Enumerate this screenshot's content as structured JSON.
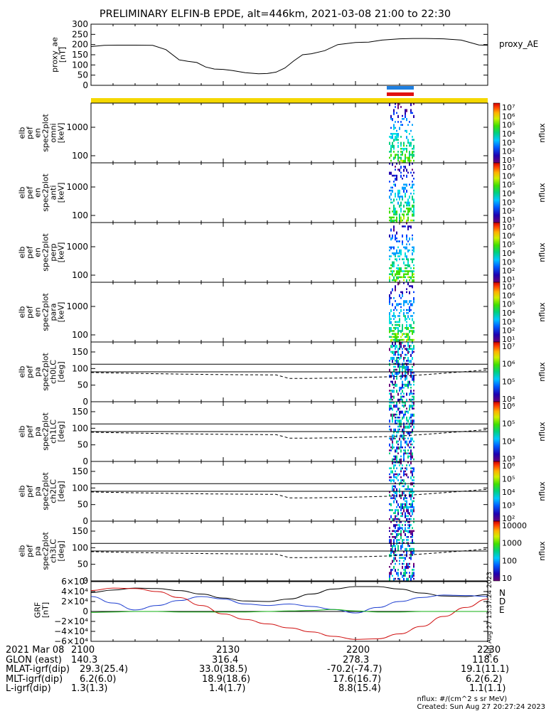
{
  "title": "PRELIMINARY ELFIN-B EPDE, alt=446km, 2021-03-08 21:00 to 22:30",
  "colors": {
    "ae_line": "#000000",
    "bar_yellow": "#f5d800",
    "bar_blue": "#1e7fe0",
    "bar_red": "#e01010",
    "grf_n": "#1f3fd0",
    "grf_d": "#d01010",
    "grf_e": "#10b010"
  },
  "chart_data": [
    {
      "type": "line",
      "panel": "proxy_ae",
      "ylabel_lines": [
        "proxy_ae",
        "[nT]"
      ],
      "legend": "proxy_AE",
      "ylim": [
        0,
        300
      ],
      "yticks": [
        "300",
        "250",
        "200",
        "150",
        "100",
        "50",
        "0"
      ],
      "x_minutes": [
        0,
        3,
        6,
        10,
        14,
        17,
        20,
        22,
        24,
        26,
        28,
        30,
        32,
        35,
        38,
        40,
        42,
        44,
        46,
        48,
        50,
        53,
        56,
        58,
        60,
        63,
        66,
        70,
        73,
        76,
        80,
        84,
        88,
        90
      ],
      "values": [
        190,
        196,
        197,
        197,
        196,
        175,
        125,
        118,
        112,
        90,
        80,
        78,
        73,
        62,
        57,
        58,
        65,
        85,
        120,
        150,
        155,
        170,
        200,
        205,
        210,
        212,
        222,
        228,
        230,
        230,
        228,
        222,
        198,
        196
      ]
    },
    {
      "type": "heatmap",
      "panel": "omni",
      "ylabel_lines": [
        "elb",
        "pef",
        "en",
        "spec2plot",
        "omni",
        "[keV]"
      ],
      "yticks": [
        "1000",
        "100"
      ],
      "colorbar_label": "nflux",
      "colorbar_ticks": [
        "10⁷",
        "10⁶",
        "10⁵",
        "10⁴",
        "10³",
        "10²",
        "10¹"
      ]
    },
    {
      "type": "heatmap",
      "panel": "anti",
      "ylabel_lines": [
        "elb",
        "pef",
        "en",
        "spec2plot",
        "anti",
        "[keV]"
      ],
      "yticks": [
        "1000",
        "100"
      ],
      "colorbar_label": "nflux",
      "colorbar_ticks": [
        "10⁷",
        "10⁶",
        "10⁵",
        "10⁴",
        "10³",
        "10²",
        "10¹"
      ]
    },
    {
      "type": "heatmap",
      "panel": "perp",
      "ylabel_lines": [
        "elb",
        "pef",
        "en",
        "spec2plot",
        "perp",
        "[keV]"
      ],
      "yticks": [
        "1000",
        "100"
      ],
      "colorbar_label": "nflux",
      "colorbar_ticks": [
        "10⁷",
        "10⁶",
        "10⁵",
        "10⁴",
        "10³",
        "10²",
        "10¹"
      ]
    },
    {
      "type": "heatmap",
      "panel": "para",
      "ylabel_lines": [
        "elb",
        "pef",
        "en",
        "spec2plot",
        "para",
        "[keV]"
      ],
      "yticks": [
        "1000",
        "100"
      ],
      "colorbar_label": "nflux",
      "colorbar_ticks": [
        "10⁷",
        "10⁶",
        "10⁵",
        "10⁴",
        "10³",
        "10²",
        "10¹"
      ]
    },
    {
      "type": "heatmap",
      "panel": "ch0LC",
      "ylabel_lines": [
        "elb",
        "pef",
        "pa",
        "spec2plot",
        "ch0LC",
        "[deg]"
      ],
      "yticks": [
        "150",
        "100",
        "50",
        "0"
      ],
      "ylim": [
        0,
        180
      ],
      "colorbar_label": "nflux",
      "colorbar_ticks": [
        "10⁷",
        "10⁶",
        "10⁵",
        "10⁴"
      ]
    },
    {
      "type": "heatmap",
      "panel": "ch1LC",
      "ylabel_lines": [
        "elb",
        "pef",
        "pa",
        "spec2plot",
        "ch1LC",
        "[deg]"
      ],
      "yticks": [
        "150",
        "100",
        "50",
        "0"
      ],
      "ylim": [
        0,
        180
      ],
      "colorbar_label": "nflux",
      "colorbar_ticks": [
        "10⁶",
        "10⁵",
        "10⁴",
        "10³"
      ]
    },
    {
      "type": "heatmap",
      "panel": "ch2LC",
      "ylabel_lines": [
        "elb",
        "pef",
        "pa",
        "spec2plot",
        "ch2LC",
        "[deg]"
      ],
      "yticks": [
        "150",
        "100",
        "50",
        "0"
      ],
      "ylim": [
        0,
        180
      ],
      "colorbar_label": "nflux",
      "colorbar_ticks": [
        "10⁶",
        "10⁵",
        "10⁴",
        "10³",
        "10²"
      ]
    },
    {
      "type": "heatmap",
      "panel": "ch3LC",
      "ylabel_lines": [
        "elb",
        "pef",
        "pa",
        "spec2plot",
        "ch3LC",
        "[deg]"
      ],
      "yticks": [
        "150",
        "100",
        "50",
        "0"
      ],
      "ylim": [
        0,
        180
      ],
      "colorbar_label": "nflux",
      "colorbar_ticks": [
        "10000",
        "1000",
        "100",
        "10"
      ]
    },
    {
      "type": "line",
      "panel": "GRF",
      "ylabel_lines": [
        "GRF",
        "[nT]"
      ],
      "ylim": [
        -60000,
        60000
      ],
      "yticks": [
        "6×10⁴",
        "4×10⁴",
        "2×10⁴",
        "0",
        "−2×10⁴",
        "−4×10⁴",
        "−6×10⁴"
      ],
      "legend": [
        "N",
        "D",
        "E"
      ],
      "x_minutes": [
        0,
        5,
        10,
        15,
        20,
        25,
        30,
        35,
        40,
        45,
        50,
        55,
        60,
        65,
        70,
        75,
        80,
        85,
        90
      ],
      "series": [
        {
          "values": [
            38000,
            43000,
            47000,
            46000,
            42000,
            35000,
            27000,
            21000,
            20000,
            25000,
            35000,
            45000,
            50000,
            50000,
            45000,
            37000,
            31000,
            30000,
            34000
          ]
        },
        {
          "values": [
            30000,
            17000,
            3000,
            12000,
            22000,
            30000,
            25000,
            15000,
            12000,
            15000,
            10000,
            4000,
            -3000,
            8000,
            20000,
            28000,
            33000,
            32000,
            30000
          ]
        },
        {
          "values": [
            42000,
            47000,
            46000,
            40000,
            28000,
            12000,
            -5000,
            -16000,
            -25000,
            -33000,
            -41000,
            -50000,
            -56000,
            -55000,
            -45000,
            -30000,
            -10000,
            8000,
            25000
          ]
        },
        {
          "values": [
            -2000,
            -1000,
            0,
            0,
            -1000,
            -1000,
            -1000,
            -1000,
            0,
            1000,
            2000,
            4000,
            1000,
            -1000,
            -1000,
            0,
            0,
            0,
            0
          ]
        }
      ]
    }
  ],
  "footer": {
    "rows": [
      {
        "label": "2021 Mar 08",
        "values": [
          "2100",
          "2130",
          "2200",
          "2230"
        ]
      },
      {
        "label": "GLON (east)",
        "values": [
          "140.3",
          "316.4",
          "278.3",
          "118.6"
        ]
      },
      {
        "label": "MLAT-igrf(dip)",
        "values": [
          "29.3(25.4)",
          "33.0(38.5)",
          "-70.2(-74.7)",
          "19.1(11.1)"
        ]
      },
      {
        "label": "MLT-igrf(dip)",
        "values": [
          "6.2(6.0)",
          "18.9(18.6)",
          "17.6(16.7)",
          "6.2(6.2)"
        ]
      },
      {
        "label": "L-igrf(dip)",
        "values": [
          "1.3(1.3)",
          "1.4(1.7)",
          "8.8(15.4)",
          "1.1(1.1)"
        ]
      }
    ],
    "units_note": "nflux: #/(cm^2 s sr MeV)",
    "created": "Created: Sun Aug 27 20:27:24 2023",
    "side_stamp": "Sun Aug 27 13:37:24 2023"
  }
}
